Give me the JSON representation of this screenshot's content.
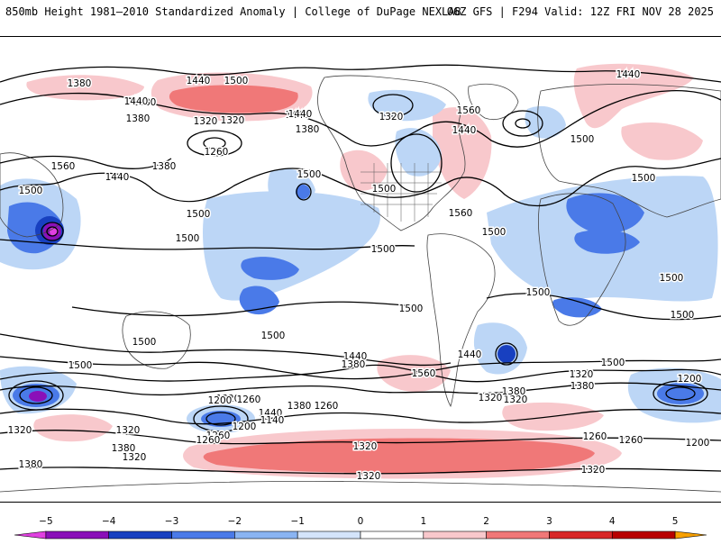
{
  "header": {
    "left": "850mb Height 1981–2010 Standardized Anomaly | College of DuPage NEXLAB",
    "right": "06Z GFS | F294 Valid: 12Z FRI NOV 28 2025"
  },
  "colors": {
    "neg5": "#e040e0",
    "neg4": "#8a10b8",
    "neg3": "#1840c0",
    "neg2": "#4a7ae8",
    "neg1": "#bcd6f6",
    "pos1": "#f8c8cc",
    "pos2": "#f07878",
    "pos3": "#d82828",
    "pos4": "#b80000",
    "pos5": "#f8a000",
    "contour": "#000000"
  },
  "contour_labels": [
    {
      "text": "1380"
    },
    {
      "text": "1440"
    },
    {
      "text": "1500"
    },
    {
      "text": "1380"
    },
    {
      "text": "1440"
    },
    {
      "text": "1380"
    },
    {
      "text": "1320"
    },
    {
      "text": "1440"
    },
    {
      "text": "1380"
    },
    {
      "text": "1320"
    },
    {
      "text": "1440"
    },
    {
      "text": "1320"
    },
    {
      "text": "1260"
    },
    {
      "text": "1380"
    },
    {
      "text": "1440"
    },
    {
      "text": "1500"
    },
    {
      "text": "1560"
    },
    {
      "text": "1500"
    },
    {
      "text": "1440"
    },
    {
      "text": "1560"
    },
    {
      "text": "1500"
    },
    {
      "text": "1500"
    },
    {
      "text": "1500"
    },
    {
      "text": "1440"
    },
    {
      "text": "1500"
    },
    {
      "text": "1560"
    },
    {
      "text": "1500"
    },
    {
      "text": "1500"
    },
    {
      "text": "1500"
    },
    {
      "text": "1500"
    },
    {
      "text": "1500"
    },
    {
      "text": "1500"
    },
    {
      "text": "1500"
    },
    {
      "text": "1500"
    },
    {
      "text": "1500"
    },
    {
      "text": "1440"
    },
    {
      "text": "1440"
    },
    {
      "text": "1380"
    },
    {
      "text": "1500"
    },
    {
      "text": "1500"
    },
    {
      "text": "1320"
    },
    {
      "text": "1260"
    },
    {
      "text": "1440"
    },
    {
      "text": "1380"
    },
    {
      "text": "1560"
    },
    {
      "text": "1320"
    },
    {
      "text": "1380"
    },
    {
      "text": "1260"
    },
    {
      "text": "1200"
    },
    {
      "text": "1200"
    },
    {
      "text": "1260"
    },
    {
      "text": "1140"
    },
    {
      "text": "1200"
    },
    {
      "text": "1320"
    },
    {
      "text": "1380"
    },
    {
      "text": "1260"
    },
    {
      "text": "1260"
    },
    {
      "text": "1320"
    },
    {
      "text": "1380"
    },
    {
      "text": "1320"
    },
    {
      "text": "1320"
    },
    {
      "text": "1320"
    },
    {
      "text": "1260"
    },
    {
      "text": "1320"
    },
    {
      "text": "1380"
    },
    {
      "text": "1320"
    },
    {
      "text": "1320"
    },
    {
      "text": "1200"
    }
  ],
  "colorbar": {
    "ticks": [
      "−5",
      "−4",
      "−3",
      "−2",
      "−1",
      "0",
      "1",
      "2",
      "3",
      "4",
      "5"
    ],
    "bins": [
      {
        "from": -5.5,
        "to": -5,
        "color": "#e040e0"
      },
      {
        "from": -5,
        "to": -4,
        "color": "#8a10b8"
      },
      {
        "from": -4,
        "to": -3,
        "color": "#1840c0"
      },
      {
        "from": -3,
        "to": -2,
        "color": "#4a7ae8"
      },
      {
        "from": -2,
        "to": -1,
        "color": "#8ab4f2"
      },
      {
        "from": -1,
        "to": 0,
        "color": "#d4e4fa"
      },
      {
        "from": 0,
        "to": 1,
        "color": "#ffffff"
      },
      {
        "from": 1,
        "to": 2,
        "color": "#f8c8cc"
      },
      {
        "from": 2,
        "to": 3,
        "color": "#f07878"
      },
      {
        "from": 3,
        "to": 4,
        "color": "#d82828"
      },
      {
        "from": 4,
        "to": 5,
        "color": "#b80000"
      },
      {
        "from": 5,
        "to": 5.5,
        "color": "#f8a000"
      }
    ]
  }
}
